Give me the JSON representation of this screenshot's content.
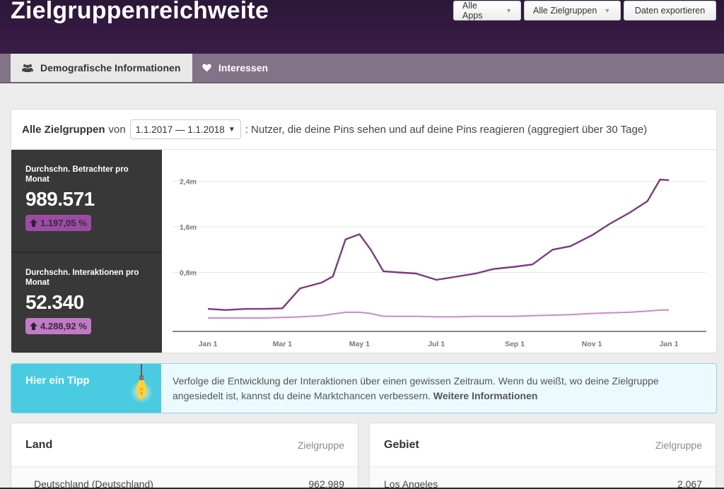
{
  "header": {
    "title": "Zielgruppenreichweite",
    "buttons": {
      "apps": "Alle Apps",
      "audiences": "Alle Zielgruppen",
      "export": "Daten exportieren"
    }
  },
  "tabs": [
    {
      "label": "Demografische Informationen",
      "icon": "people-icon",
      "active": true
    },
    {
      "label": "Interessen",
      "icon": "heart-icon",
      "active": false
    }
  ],
  "overview": {
    "audience_label": "Alle Zielgruppen",
    "von": "von",
    "date_range": "1.1.2017 — 1.1.2018",
    "description": ": Nutzer, die deine Pins sehen und auf deine Pins reagieren (aggregiert über 30 Tage)"
  },
  "stats": [
    {
      "label": "Durchschn. Betrachter pro Monat",
      "value": "989.571",
      "change": "1.197,05 %",
      "color": "#9b4ca2"
    },
    {
      "label": "Durchschn. Interaktionen pro Monat",
      "value": "52.340",
      "change": "4.288,92 %",
      "color": "#c07ac6"
    }
  ],
  "chart_data": {
    "type": "line",
    "title": "",
    "xlabel": "",
    "ylabel": "",
    "x_ticks": [
      "Jan 1",
      "Mar 1",
      "May 1",
      "Jul 1",
      "Sep 1",
      "Nov 1",
      "Jan 1"
    ],
    "y_ticks": [
      "0,8m",
      "1,6m",
      "2,4m"
    ],
    "ylim": [
      0,
      2.5
    ],
    "y_unit": "millions",
    "grid": true,
    "legend": null,
    "x": [
      "2017-01-01",
      "2017-01-15",
      "2017-02-01",
      "2017-02-15",
      "2017-03-01",
      "2017-03-15",
      "2017-04-01",
      "2017-04-10",
      "2017-04-20",
      "2017-05-01",
      "2017-05-10",
      "2017-05-20",
      "2017-06-01",
      "2017-06-15",
      "2017-07-01",
      "2017-07-15",
      "2017-08-01",
      "2017-08-15",
      "2017-09-01",
      "2017-09-15",
      "2017-10-01",
      "2017-10-15",
      "2017-11-01",
      "2017-11-15",
      "2017-12-01",
      "2017-12-15",
      "2017-12-25",
      "2018-01-01"
    ],
    "series": [
      {
        "name": "Durchschn. Betrachter pro Monat",
        "color": "#7b3a7f",
        "values": [
          0.16,
          0.14,
          0.16,
          0.16,
          0.17,
          0.52,
          0.62,
          0.73,
          1.38,
          1.47,
          1.2,
          0.82,
          0.8,
          0.78,
          0.67,
          0.72,
          0.78,
          0.86,
          0.9,
          0.94,
          1.2,
          1.26,
          1.45,
          1.65,
          1.85,
          2.05,
          2.43,
          2.42
        ]
      },
      {
        "name": "Durchschn. Interaktionen pro Monat",
        "color": "#c98acb",
        "values": [
          0.0,
          0.0,
          0.0,
          0.0,
          0.01,
          0.02,
          0.04,
          0.07,
          0.1,
          0.1,
          0.08,
          0.03,
          0.03,
          0.03,
          0.02,
          0.02,
          0.03,
          0.03,
          0.03,
          0.04,
          0.05,
          0.06,
          0.08,
          0.09,
          0.1,
          0.12,
          0.14,
          0.14
        ]
      }
    ]
  },
  "tip": {
    "title": "Hier ein Tipp",
    "icon": "lightbulb-icon",
    "text": "Verfolge die Entwicklung der Interaktionen über einen gewissen Zeitraum. Wenn du weißt, wo deine Zielgruppe angesiedelt ist, kannst du deine Marktchancen verbessern.",
    "link": "Weitere Informationen"
  },
  "tables": {
    "land": {
      "title": "Land",
      "column": "Zielgruppe",
      "rows": [
        {
          "name": "Deutschland (Deutschland)",
          "value": "962.989"
        }
      ]
    },
    "gebiet": {
      "title": "Gebiet",
      "column": "Zielgruppe",
      "rows": [
        {
          "name": "Los Angeles",
          "value": "2.067"
        }
      ]
    }
  }
}
